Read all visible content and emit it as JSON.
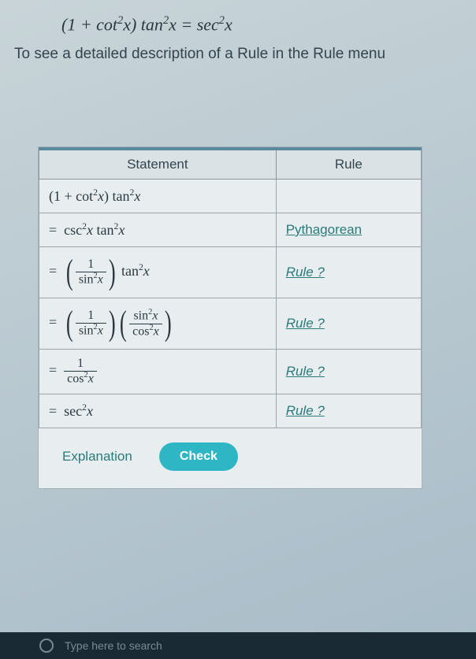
{
  "equation_top_html": "(1 + cot<span class='sup'>2</span><span class='mathit'>x</span>) tan<span class='sup'>2</span><span class='mathit'>x</span> = sec<span class='sup'>2</span><span class='mathit'>x</span>",
  "instruction": "To see a detailed description of a Rule in the Rule menu",
  "table": {
    "headers": {
      "statement": "Statement",
      "rule": "Rule"
    },
    "rows": [
      {
        "statement_html": "(1 + cot<span class='sup'>2</span><span class='mathit'>x</span>) tan<span class='sup'>2</span><span class='mathit'>x</span>",
        "rule_text": "",
        "rule_class": ""
      },
      {
        "statement_html": "=&nbsp; csc<span class='sup'>2</span><span class='mathit'>x</span> tan<span class='sup'>2</span><span class='mathit'>x</span>",
        "rule_text": "Pythagorean",
        "rule_class": "rule-pyth"
      },
      {
        "statement_html": "=&nbsp; <span class='paren-wrap'><span class='big-paren'>(</span><span class='frac'><span class='num'>1</span><span class='den'>sin<span class='sup'>2</span><span class='mathit'>x</span></span></span><span class='big-paren'>)</span></span> tan<span class='sup'>2</span><span class='mathit'>x</span>",
        "rule_text": "Rule ?",
        "rule_class": "rule-link"
      },
      {
        "statement_html": "=&nbsp; <span class='paren-wrap'><span class='big-paren'>(</span><span class='frac'><span class='num'>1</span><span class='den'>sin<span class='sup'>2</span><span class='mathit'>x</span></span></span><span class='big-paren'>)</span></span><span class='paren-wrap'><span class='big-paren'>(</span><span class='frac'><span class='num'>sin<span class='sup'>2</span><span class='mathit'>x</span></span><span class='den'>cos<span class='sup'>2</span><span class='mathit'>x</span></span></span><span class='big-paren'>)</span></span>",
        "rule_text": "Rule ?",
        "rule_class": "rule-link"
      },
      {
        "statement_html": "=&nbsp; <span class='frac'><span class='num'>1</span><span class='den'>cos<span class='sup'>2</span><span class='mathit'>x</span></span></span>",
        "rule_text": "Rule ?",
        "rule_class": "rule-link"
      },
      {
        "statement_html": "=&nbsp; sec<span class='sup'>2</span><span class='mathit'>x</span>",
        "rule_text": "Rule ?",
        "rule_class": "rule-link"
      }
    ]
  },
  "footer": {
    "explanation": "Explanation",
    "check": "Check"
  },
  "taskbar": {
    "hint": "Type here to search"
  }
}
